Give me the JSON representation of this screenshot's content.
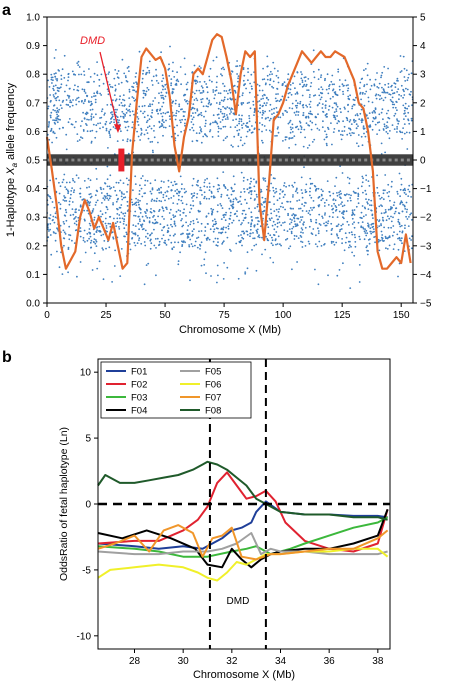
{
  "figure": {
    "panel_a_letter": "a",
    "panel_b_letter": "b"
  },
  "chart_data": [
    {
      "type": "scatter",
      "panel": "a",
      "xlabel": "Chromosome X (Mb)",
      "ylabel_parts": [
        "1-Haplotype ",
        "X",
        "a",
        " allele frequency"
      ],
      "xlim": [
        0,
        155
      ],
      "ylim": [
        0,
        1
      ],
      "y2lim": [
        -5,
        5
      ],
      "xticks": [
        0,
        25,
        50,
        75,
        100,
        125,
        150
      ],
      "yticks": [
        "0.0",
        "0.1",
        "0.2",
        "0.3",
        "0.4",
        "0.5",
        "0.6",
        "0.7",
        "0.8",
        "0.9",
        "1.0"
      ],
      "y2ticks": [
        "−5",
        "−4",
        "−3",
        "−2",
        "−1",
        "0",
        "1",
        "2",
        "3",
        "4",
        "5"
      ],
      "annotation": {
        "text": "DMD",
        "x_mb": 31.5,
        "color": "#e8202a"
      },
      "grid": false,
      "series": [
        {
          "kind": "scatter",
          "color": "#3f7fbf",
          "point_count": 3200,
          "description_values": "allele frequencies spread between ~0.2 and ~0.8, bimodal around 0.3-0.4 and 0.6-0.7"
        },
        {
          "kind": "line",
          "color": "#e3692a",
          "axis": "right",
          "x": [
            0,
            2,
            4,
            6,
            8,
            10,
            12,
            14,
            16,
            18,
            20,
            22,
            24,
            26,
            28,
            30,
            32,
            34,
            36,
            38,
            40,
            42,
            44,
            46,
            48,
            50,
            52,
            54,
            56,
            58,
            60,
            62,
            64,
            66,
            68,
            70,
            72,
            74,
            76,
            78,
            80,
            82,
            84,
            86,
            88,
            90,
            92,
            94,
            96,
            98,
            100,
            102,
            104,
            106,
            108,
            110,
            112,
            114,
            116,
            118,
            120,
            122,
            124,
            126,
            128,
            130,
            132,
            134,
            136,
            138,
            140,
            142,
            144,
            146,
            148,
            150,
            152,
            154
          ],
          "y": [
            0.8,
            -0.3,
            -1.5,
            -3.0,
            -3.8,
            -3.5,
            -3.2,
            -2.0,
            -1.4,
            -1.8,
            -2.4,
            -2.0,
            -2.4,
            -2.8,
            -2.2,
            -3.0,
            -3.8,
            -3.6,
            0.2,
            2.0,
            3.6,
            3.9,
            3.7,
            3.5,
            3.6,
            3.2,
            2.2,
            0.5,
            -0.4,
            0.8,
            1.5,
            3.0,
            3.2,
            3.0,
            3.6,
            4.2,
            4.4,
            4.3,
            3.6,
            2.8,
            1.6,
            3.0,
            3.8,
            3.6,
            3.8,
            -1.5,
            -2.8,
            -0.8,
            1.4,
            1.6,
            2.0,
            2.6,
            3.0,
            3.4,
            3.8,
            3.6,
            3.4,
            3.6,
            3.8,
            3.6,
            3.6,
            3.8,
            3.7,
            3.6,
            3.2,
            2.8,
            2.0,
            1.8,
            1.0,
            -0.4,
            -3.2,
            -3.8,
            -3.8,
            -3.6,
            -3.4,
            -3.6,
            -2.6,
            -3.6
          ]
        }
      ]
    },
    {
      "type": "line",
      "panel": "b",
      "xlabel": "Chromosome X (Mb)",
      "ylabel": "OddsRatio of fetal haplotype (Ln)",
      "xlim": [
        26.5,
        38.5
      ],
      "ylim": [
        -11,
        11
      ],
      "xticks": [
        28,
        30,
        32,
        34,
        36,
        38
      ],
      "yticks": [
        -10,
        -5,
        0,
        5,
        10
      ],
      "annotation": {
        "text": "DMD"
      },
      "vlines": [
        31.1,
        33.4
      ],
      "hline": 0,
      "legend_position": "top-left",
      "legend_columns": [
        [
          "F01",
          "F02",
          "F03",
          "F04"
        ],
        [
          "F05",
          "F06",
          "F07",
          "F08"
        ]
      ],
      "series": [
        {
          "name": "F01",
          "color": "#1f3f99",
          "x": [
            26.5,
            28,
            29,
            30,
            30.8,
            31.2,
            31.6,
            32.0,
            32.4,
            32.8,
            33.0,
            33.4,
            34,
            35,
            36,
            37,
            38,
            38.4
          ],
          "y": [
            -3.0,
            -3.2,
            -3.4,
            -3.2,
            -3.4,
            -3.0,
            -2.6,
            -2.0,
            -1.8,
            -1.4,
            -0.6,
            0.2,
            -0.6,
            -0.8,
            -0.8,
            -0.9,
            -0.9,
            -1.0
          ]
        },
        {
          "name": "F02",
          "color": "#e02230",
          "x": [
            26.5,
            28,
            29,
            30,
            30.6,
            31.0,
            31.4,
            31.8,
            32.2,
            32.6,
            33.0,
            33.4,
            33.8,
            34.2,
            35,
            36,
            37,
            38,
            38.4
          ],
          "y": [
            -3.0,
            -2.8,
            -2.8,
            -2.0,
            -1.2,
            -0.2,
            1.6,
            2.4,
            1.4,
            0.4,
            0.6,
            1.0,
            0.2,
            -1.4,
            -2.8,
            -3.4,
            -3.6,
            -3.0,
            -0.4
          ]
        },
        {
          "name": "F03",
          "color": "#3cb83c",
          "x": [
            26.5,
            28,
            29,
            30,
            31,
            32,
            32.6,
            33.0,
            33.6,
            34.4,
            35,
            36,
            37,
            38,
            38.4
          ],
          "y": [
            -3.2,
            -3.4,
            -3.6,
            -4.0,
            -4.0,
            -3.6,
            -3.4,
            -3.2,
            -3.8,
            -3.4,
            -3.0,
            -2.4,
            -1.8,
            -1.4,
            -1.0
          ]
        },
        {
          "name": "F04",
          "color": "#000000",
          "x": [
            26.5,
            27.5,
            28.5,
            29.5,
            30.5,
            31.0,
            31.6,
            32.0,
            32.4,
            32.8,
            33.2,
            33.6,
            34,
            35,
            36,
            37,
            38,
            38.4
          ],
          "y": [
            -2.2,
            -2.6,
            -2.0,
            -2.6,
            -3.4,
            -4.6,
            -4.8,
            -3.4,
            -4.2,
            -4.8,
            -4.2,
            -3.8,
            -3.6,
            -3.4,
            -3.4,
            -3.0,
            -2.4,
            -0.4
          ]
        },
        {
          "name": "F05",
          "color": "#a0a0a0",
          "x": [
            26.5,
            28,
            29,
            30,
            31,
            31.6,
            32.2,
            32.8,
            33.2,
            33.6,
            34,
            35,
            36,
            37,
            38,
            38.4
          ],
          "y": [
            -3.6,
            -3.8,
            -3.8,
            -3.6,
            -3.6,
            -3.4,
            -3.0,
            -2.2,
            -3.8,
            -3.4,
            -3.6,
            -3.6,
            -3.8,
            -3.8,
            -3.8,
            -3.6
          ]
        },
        {
          "name": "F06",
          "color": "#f0f02a",
          "x": [
            26.5,
            27,
            28,
            29,
            30,
            30.6,
            31.0,
            31.4,
            31.8,
            32.2,
            32.6,
            33.0,
            33.4,
            34,
            35,
            36,
            37,
            38,
            38.4
          ],
          "y": [
            -5.6,
            -5.0,
            -4.8,
            -4.6,
            -4.8,
            -5.2,
            -5.6,
            -5.8,
            -5.2,
            -4.4,
            -4.6,
            -4.2,
            -3.8,
            -3.8,
            -3.6,
            -3.6,
            -3.4,
            -3.4,
            -4.0
          ]
        },
        {
          "name": "F07",
          "color": "#f0962a",
          "x": [
            26.5,
            27.2,
            28,
            28.6,
            29.2,
            29.8,
            30.4,
            30.8,
            31.2,
            31.6,
            32.0,
            32.4,
            33.0,
            33.6,
            34,
            35,
            36,
            37,
            38,
            38.4
          ],
          "y": [
            -3.4,
            -3.0,
            -2.4,
            -3.6,
            -2.0,
            -1.6,
            -2.2,
            -4.0,
            -2.6,
            -2.4,
            -1.8,
            -4.0,
            -4.2,
            -3.8,
            -3.8,
            -3.6,
            -3.4,
            -3.4,
            -2.6,
            -2.0
          ]
        },
        {
          "name": "F08",
          "color": "#1f5a2a",
          "x": [
            26.5,
            26.8,
            27.4,
            28,
            28.6,
            29.2,
            29.8,
            30.4,
            30.8,
            31.0,
            31.4,
            31.8,
            32.2,
            32.6,
            33.0,
            33.4,
            34,
            35,
            36,
            37,
            38,
            38.4
          ],
          "y": [
            1.4,
            2.2,
            1.6,
            1.6,
            1.8,
            2.0,
            2.2,
            2.6,
            3.0,
            3.2,
            3.0,
            2.6,
            2.0,
            1.4,
            0.4,
            0.0,
            -0.6,
            -0.8,
            -0.8,
            -1.0,
            -1.0,
            -1.2
          ]
        }
      ]
    }
  ]
}
